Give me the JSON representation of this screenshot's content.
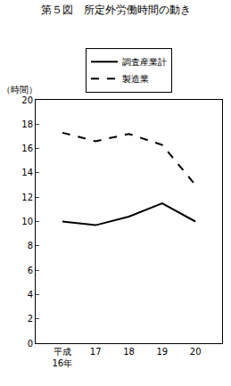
{
  "chart_data": {
    "type": "line",
    "title": "第５図　所定外労働時間の動き",
    "ylabel": "（時間）",
    "categories": [
      "平成\n16年",
      "17",
      "18",
      "19",
      "20"
    ],
    "series": [
      {
        "name": "調査産業計",
        "color": "#000000",
        "line_style": "solid",
        "values": [
          10.0,
          9.7,
          10.4,
          11.5,
          10.0
        ]
      },
      {
        "name": "製造業",
        "color": "#000000",
        "line_style": "dashed",
        "values": [
          17.3,
          16.6,
          17.2,
          16.3,
          13.0
        ]
      }
    ],
    "ylim": [
      0,
      20
    ],
    "yticks": [
      0,
      2,
      4,
      6,
      8,
      10,
      12,
      14,
      16,
      18,
      20
    ],
    "grid": false,
    "legend": "top"
  }
}
